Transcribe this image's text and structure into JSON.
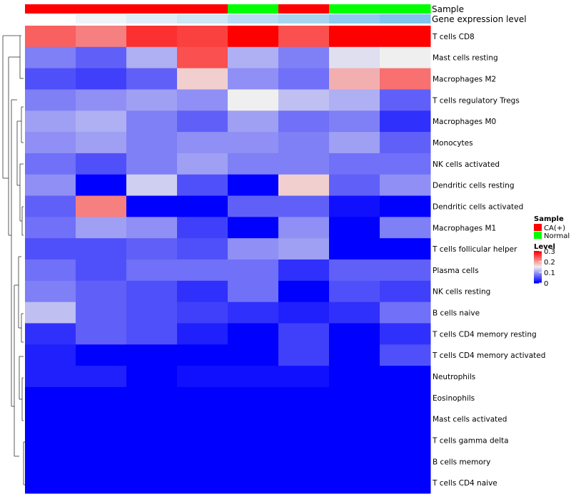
{
  "chart_data": {
    "type": "heatmap",
    "title": "",
    "annotations": {
      "sample_label": "Sample",
      "expression_label": "Gene expression level",
      "sample_groups": [
        "CA(+)",
        "CA(+)",
        "CA(+)",
        "CA(+)",
        "Normal",
        "CA(+)",
        "Normal",
        "Normal"
      ],
      "expression_colors": [
        "#ffffff",
        "#eef4f8",
        "#dfedf6",
        "#cfe6f4",
        "#b8dcf1",
        "#a9d5f0",
        "#8fcbee",
        "#7fc4ec"
      ]
    },
    "rows": [
      "T cells CD8",
      "Mast cells resting",
      "Macrophages M2",
      "T cells regulatory  Tregs",
      "Macrophages M0",
      "Monocytes",
      "NK cells activated",
      "Dendritic cells resting",
      "Dendritic cells activated",
      "Macrophages M1",
      "T cells follicular helper",
      "Plasma cells",
      "NK cells resting",
      "B cells naive",
      "T cells CD4 memory resting",
      "T cells CD4 memory activated",
      "Neutrophils",
      "Eosinophils",
      "Mast cells activated",
      "T cells gamma delta",
      "B cells memory",
      "T cells CD4 naive"
    ],
    "values": [
      [
        0.24,
        0.22,
        0.27,
        0.26,
        0.3,
        0.25,
        0.3,
        0.3
      ],
      [
        0.08,
        0.06,
        0.11,
        0.25,
        0.11,
        0.08,
        0.14,
        0.15
      ],
      [
        0.05,
        0.04,
        0.06,
        0.17,
        0.09,
        0.07,
        0.19,
        0.23
      ],
      [
        0.08,
        0.09,
        0.1,
        0.09,
        0.15,
        0.12,
        0.11,
        0.06
      ],
      [
        0.1,
        0.11,
        0.08,
        0.06,
        0.1,
        0.07,
        0.08,
        0.03
      ],
      [
        0.09,
        0.1,
        0.08,
        0.09,
        0.09,
        0.08,
        0.1,
        0.06
      ],
      [
        0.07,
        0.05,
        0.08,
        0.1,
        0.08,
        0.08,
        0.07,
        0.07
      ],
      [
        0.09,
        0.0,
        0.13,
        0.05,
        0.0,
        0.17,
        0.06,
        0.09
      ],
      [
        0.06,
        0.22,
        0.0,
        0.0,
        0.06,
        0.06,
        0.01,
        0.0
      ],
      [
        0.07,
        0.1,
        0.09,
        0.04,
        0.0,
        0.09,
        0.0,
        0.08
      ],
      [
        0.05,
        0.05,
        0.06,
        0.05,
        0.09,
        0.1,
        0.0,
        0.0
      ],
      [
        0.07,
        0.05,
        0.07,
        0.07,
        0.07,
        0.03,
        0.06,
        0.06
      ],
      [
        0.08,
        0.06,
        0.05,
        0.03,
        0.07,
        0.0,
        0.05,
        0.04
      ],
      [
        0.12,
        0.06,
        0.05,
        0.04,
        0.03,
        0.02,
        0.03,
        0.07
      ],
      [
        0.03,
        0.06,
        0.05,
        0.02,
        0.0,
        0.04,
        0.0,
        0.03
      ],
      [
        0.02,
        0.0,
        0.0,
        0.0,
        0.0,
        0.04,
        0.0,
        0.05
      ],
      [
        0.02,
        0.02,
        0.0,
        0.01,
        0.01,
        0.01,
        0.0,
        0.0
      ],
      [
        0.0,
        0.0,
        0.0,
        0.0,
        0.0,
        0.0,
        0.0,
        0.0
      ],
      [
        0.0,
        0.0,
        0.0,
        0.0,
        0.0,
        0.0,
        0.0,
        0.0
      ],
      [
        0.0,
        0.0,
        0.0,
        0.0,
        0.0,
        0.0,
        0.0,
        0.0
      ],
      [
        0.0,
        0.0,
        0.0,
        0.0,
        0.0,
        0.0,
        0.0,
        0.0
      ],
      [
        0.0,
        0.0,
        0.0,
        0.0,
        0.0,
        0.0,
        0.0,
        0.0
      ]
    ],
    "color_scale": {
      "min": 0,
      "mid": 0.15,
      "max": 0.3,
      "low_color": "#0000ff",
      "mid_color": "#efefef",
      "high_color": "#ff0000"
    },
    "dendrogram": "hierarchical clustering of rows (left side)",
    "legend": {
      "position": "right",
      "sample_title": "Sample",
      "sample_entries": [
        {
          "label": "CA(+)",
          "color": "#ff0000"
        },
        {
          "label": "Normal",
          "color": "#00ff00"
        }
      ],
      "level_title": "Level",
      "level_ticks": [
        "0.3",
        "0.2",
        "0.1",
        "0"
      ]
    }
  }
}
